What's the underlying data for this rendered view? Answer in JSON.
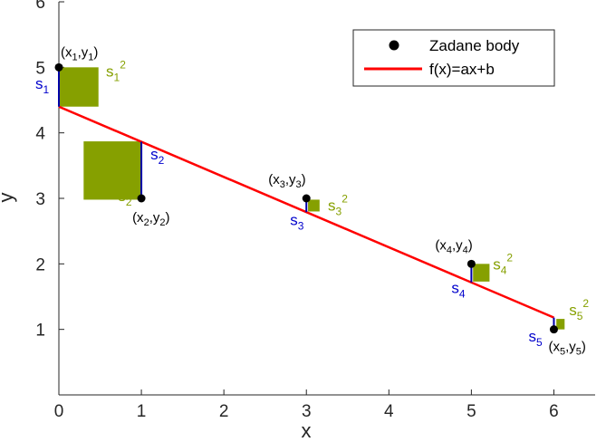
{
  "chart_data": {
    "type": "scatter",
    "title": "",
    "xlabel": "x",
    "ylabel": "y",
    "xlim": [
      0,
      6.5
    ],
    "ylim": [
      0,
      6
    ],
    "xticks": [
      "0",
      "1",
      "2",
      "3",
      "4",
      "5",
      "6"
    ],
    "yticks": [
      "1",
      "2",
      "3",
      "4",
      "5",
      "6"
    ],
    "grid": false,
    "legend_position": "top-right",
    "colors": {
      "points": "#000000",
      "line": "#ff0000",
      "residual": "#0000aa",
      "square": "#86a000",
      "residual_label": "#0000cc",
      "square_label": "#86a000"
    },
    "series": [
      {
        "name": "Zadane body",
        "kind": "scatter",
        "x": [
          0,
          1,
          3,
          5,
          6
        ],
        "y": [
          5,
          3,
          3,
          2,
          1
        ],
        "labels": [
          {
            "base": "(x",
            "sub1": "1",
            "mid": ",y",
            "sub2": "1",
            "end": ")"
          },
          {
            "base": "(x",
            "sub1": "2",
            "mid": ",y",
            "sub2": "2",
            "end": ")"
          },
          {
            "base": "(x",
            "sub1": "3",
            "mid": ",y",
            "sub2": "3",
            "end": ")"
          },
          {
            "base": "(x",
            "sub1": "4",
            "mid": ",y",
            "sub2": "4",
            "end": ")"
          },
          {
            "base": "(x",
            "sub1": "5",
            "mid": ",y",
            "sub2": "5",
            "end": ")"
          }
        ]
      },
      {
        "name": "f(x)=ax+b",
        "kind": "line",
        "x": [
          0,
          6
        ],
        "y": [
          4.4,
          1.18
        ]
      }
    ],
    "residuals": [
      {
        "base": "s",
        "sub": "1"
      },
      {
        "base": "s",
        "sub": "2"
      },
      {
        "base": "s",
        "sub": "3"
      },
      {
        "base": "s",
        "sub": "4"
      },
      {
        "base": "s",
        "sub": "5"
      }
    ],
    "squares": [
      {
        "base": "s",
        "sub": "1",
        "sup": "2",
        "x0": 0,
        "x1": 0.48,
        "y0": 4.4,
        "y1": 5.0
      },
      {
        "base": "s",
        "sub": "2",
        "sup": "2",
        "x0": 0.3,
        "x1": 1.0,
        "y0": 2.98,
        "y1": 3.87
      },
      {
        "base": "s",
        "sub": "3",
        "sup": "2",
        "x0": 3.02,
        "x1": 3.16,
        "y0": 2.8,
        "y1": 2.98
      },
      {
        "base": "s",
        "sub": "4",
        "sup": "2",
        "x0": 5.02,
        "x1": 5.22,
        "y0": 1.73,
        "y1": 2.0
      },
      {
        "base": "s",
        "sub": "5",
        "sup": "2",
        "x0": 6.03,
        "x1": 6.13,
        "y0": 1.0,
        "y1": 1.16
      }
    ]
  }
}
